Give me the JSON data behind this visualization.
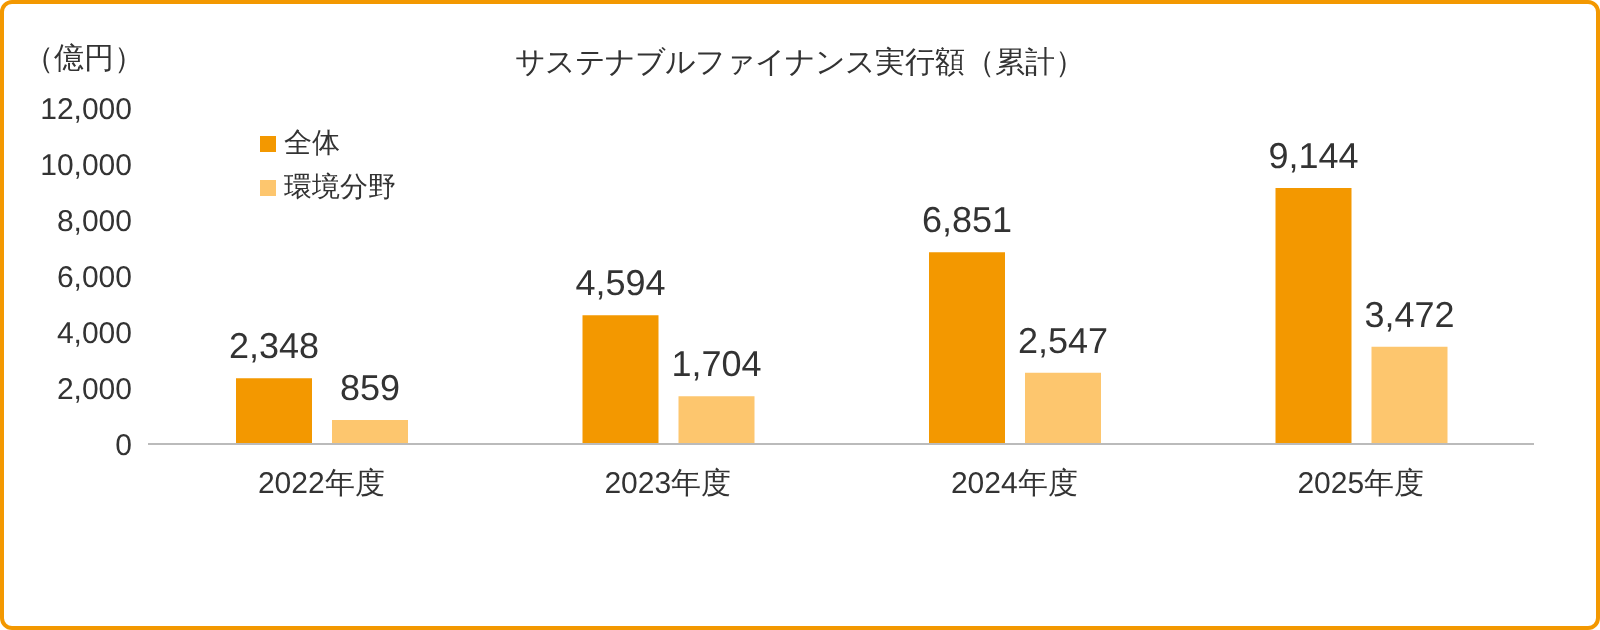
{
  "chart_data": {
    "type": "bar",
    "title": "サステナブルファイナンス実行額（累計）",
    "ylabel": "（億円）",
    "categories": [
      "2022年度",
      "2023年度",
      "2024年度",
      "2025年度"
    ],
    "series": [
      {
        "name": "全体",
        "color": "#f39800",
        "values": [
          2348,
          4594,
          6851,
          9144
        ],
        "value_labels": [
          "2,348",
          "4,594",
          "6,851",
          "9,144"
        ]
      },
      {
        "name": "環境分野",
        "color": "#fdc66e",
        "values": [
          859,
          1704,
          2547,
          3472
        ],
        "value_labels": [
          "859",
          "1,704",
          "2,547",
          "3,472"
        ]
      }
    ],
    "ylim": [
      0,
      12000
    ],
    "yticks": [
      {
        "value": 0,
        "label": "0"
      },
      {
        "value": 2000,
        "label": "2,000"
      },
      {
        "value": 4000,
        "label": "4,000"
      },
      {
        "value": 6000,
        "label": "6,000"
      },
      {
        "value": 8000,
        "label": "8,000"
      },
      {
        "value": 10000,
        "label": "10,000"
      },
      {
        "value": 12000,
        "label": "12,000"
      }
    ],
    "grid": false,
    "legend": "top left"
  }
}
